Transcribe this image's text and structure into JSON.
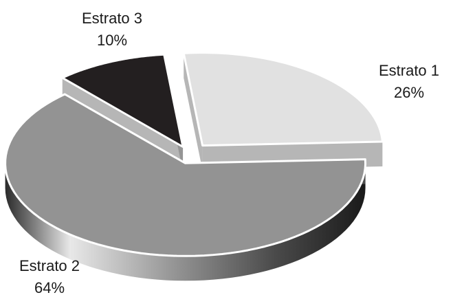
{
  "chart_data": {
    "type": "pie",
    "categories": [
      "Estrato 1",
      "Estrato 2",
      "Estrato 3"
    ],
    "values": [
      26,
      64,
      10
    ],
    "value_labels": [
      "26%",
      "64%",
      "10%"
    ],
    "colors": [
      "#e1e1e1",
      "#939393",
      "#231f20"
    ],
    "exploded": true,
    "three_d": true,
    "legend": "none"
  }
}
